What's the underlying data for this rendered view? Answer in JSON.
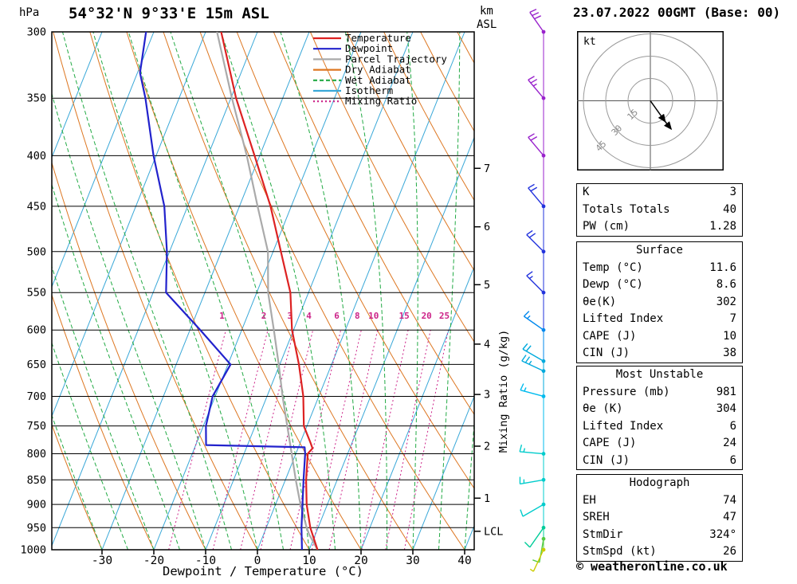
{
  "header": {
    "title": "54°32'N 9°33'E 15m ASL",
    "datetime": "23.07.2022 00GMT (Base: 00)"
  },
  "axes": {
    "pressure_label": "hPa",
    "km_label_line1": "km",
    "km_label_line2": "ASL",
    "mixing_ratio_label": "Mixing Ratio (g/kg)",
    "bottom_label": "Dewpoint / Temperature (°C)"
  },
  "footer": {
    "copyright": "© weatheronline.co.uk"
  },
  "hodograph_panel": {
    "unit": "kt",
    "rings": [
      15,
      30,
      45
    ],
    "trace_uv": [
      [
        0,
        0
      ],
      [
        5,
        -7
      ],
      [
        10,
        -14
      ],
      [
        14,
        -19
      ]
    ]
  },
  "tables": {
    "indices": {
      "rows": [
        {
          "label": "K",
          "value": "3"
        },
        {
          "label": "Totals Totals",
          "value": "40"
        },
        {
          "label": "PW (cm)",
          "value": "1.28"
        }
      ]
    },
    "surface": {
      "header": "Surface",
      "rows": [
        {
          "label": "Temp (°C)",
          "value": "11.6"
        },
        {
          "label": "Dewp (°C)",
          "value": "8.6"
        },
        {
          "label": "θe(K)",
          "value": "302"
        },
        {
          "label": "Lifted Index",
          "value": "7"
        },
        {
          "label": "CAPE (J)",
          "value": "10"
        },
        {
          "label": "CIN (J)",
          "value": "38"
        }
      ]
    },
    "most_unstable": {
      "header": "Most Unstable",
      "rows": [
        {
          "label": "Pressure (mb)",
          "value": "981"
        },
        {
          "label": "θe (K)",
          "value": "304"
        },
        {
          "label": "Lifted Index",
          "value": "6"
        },
        {
          "label": "CAPE (J)",
          "value": "24"
        },
        {
          "label": "CIN (J)",
          "value": "6"
        }
      ]
    },
    "hodograph": {
      "header": "Hodograph",
      "rows": [
        {
          "label": "EH",
          "value": "74"
        },
        {
          "label": "SREH",
          "value": "47"
        },
        {
          "label": "StmDir",
          "value": "324°"
        },
        {
          "label": "StmSpd (kt)",
          "value": "26"
        }
      ]
    }
  },
  "chart_data": {
    "type": "skew-t-log-p-sounding",
    "title": "54°32'N 9°33'E 15m ASL",
    "datetime": "23.07.2022 00GMT (Base: 00)",
    "pressure_range_hpa": [
      300,
      1000
    ],
    "pressure_ticks": [
      300,
      350,
      400,
      450,
      500,
      550,
      600,
      650,
      700,
      750,
      800,
      850,
      900,
      950,
      1000
    ],
    "temp_ticks": [
      -30,
      -20,
      -10,
      0,
      10,
      20,
      30,
      40
    ],
    "isotherm_step_c": 10,
    "km_ticks": [
      {
        "label": "7",
        "p": 412
      },
      {
        "label": "6",
        "p": 472
      },
      {
        "label": "5",
        "p": 540
      },
      {
        "label": "4",
        "p": 620
      },
      {
        "label": "3",
        "p": 697
      },
      {
        "label": "2",
        "p": 786
      },
      {
        "label": "1",
        "p": 887
      },
      {
        "label": "LCL",
        "p": 958
      }
    ],
    "mixing_ratio_values": [
      1,
      2,
      3,
      4,
      6,
      8,
      10,
      15,
      20,
      25
    ],
    "background": {
      "isotherm": "#3aa8d8",
      "dry_adiabat": "#dd7722",
      "wet_adiabat": "#22aa44",
      "mixing_ratio": "#cc2288"
    },
    "legend": [
      {
        "label": "Temperature",
        "color": "#dd2222",
        "dash": null
      },
      {
        "label": "Dewpoint",
        "color": "#2222cc",
        "dash": null
      },
      {
        "label": "Parcel Trajectory",
        "color": "#aaaaaa",
        "dash": null
      },
      {
        "label": "Dry Adiabat",
        "color": "#dd7722",
        "dash": null
      },
      {
        "label": "Wet Adiabat",
        "color": "#22aa44",
        "dash": "5,3"
      },
      {
        "label": "Isotherm",
        "color": "#3aa8d8",
        "dash": null
      },
      {
        "label": "Mixing Ratio",
        "color": "#cc2288",
        "dash": "2,3"
      }
    ],
    "series": [
      {
        "name": "Parcel Trajectory",
        "color": "#aaaaaa",
        "width": 2.2,
        "points": [
          [
            1000,
            11.6
          ],
          [
            965,
            8.8
          ],
          [
            950,
            7.8
          ],
          [
            900,
            4.8
          ],
          [
            850,
            2.0
          ],
          [
            800,
            -0.8
          ],
          [
            750,
            -3.8
          ],
          [
            700,
            -7.0
          ],
          [
            650,
            -10.2
          ],
          [
            600,
            -13.8
          ],
          [
            550,
            -17.8
          ],
          [
            500,
            -21.0
          ],
          [
            450,
            -26.5
          ],
          [
            400,
            -32.5
          ],
          [
            350,
            -39.8
          ],
          [
            300,
            -47.8
          ]
        ]
      },
      {
        "name": "Temperature",
        "color": "#dd2222",
        "width": 2.2,
        "points": [
          [
            1000,
            11.6
          ],
          [
            950,
            8.5
          ],
          [
            900,
            6.0
          ],
          [
            850,
            4.0
          ],
          [
            800,
            2.3
          ],
          [
            790,
            2.8
          ],
          [
            780,
            2.0
          ],
          [
            750,
            -0.6
          ],
          [
            700,
            -3.0
          ],
          [
            650,
            -6.3
          ],
          [
            600,
            -10.3
          ],
          [
            550,
            -13.5
          ],
          [
            500,
            -18.5
          ],
          [
            450,
            -24.0
          ],
          [
            400,
            -31.0
          ],
          [
            350,
            -39.0
          ],
          [
            300,
            -47.0
          ]
        ]
      },
      {
        "name": "Dewpoint",
        "color": "#2222cc",
        "width": 2.2,
        "points": [
          [
            1000,
            8.6
          ],
          [
            950,
            6.8
          ],
          [
            900,
            5.2
          ],
          [
            850,
            3.5
          ],
          [
            800,
            1.8
          ],
          [
            788,
            1.2
          ],
          [
            784,
            -18.0
          ],
          [
            750,
            -19.5
          ],
          [
            700,
            -20.5
          ],
          [
            650,
            -19.5
          ],
          [
            600,
            -28.0
          ],
          [
            550,
            -37.5
          ],
          [
            500,
            -40.5
          ],
          [
            450,
            -44.5
          ],
          [
            400,
            -50.5
          ],
          [
            350,
            -56.5
          ],
          [
            330,
            -59.5
          ],
          [
            300,
            -61.5
          ]
        ]
      }
    ],
    "winds": [
      {
        "p": 300,
        "dir": 325,
        "spd": 30,
        "color": "#9922cc"
      },
      {
        "p": 350,
        "dir": 320,
        "spd": 25,
        "color": "#9922cc"
      },
      {
        "p": 400,
        "dir": 320,
        "spd": 20,
        "color": "#9922cc"
      },
      {
        "p": 450,
        "dir": 320,
        "spd": 20,
        "color": "#2233dd"
      },
      {
        "p": 500,
        "dir": 315,
        "spd": 20,
        "color": "#2233dd"
      },
      {
        "p": 550,
        "dir": 315,
        "spd": 15,
        "color": "#2233dd"
      },
      {
        "p": 600,
        "dir": 305,
        "spd": 15,
        "color": "#0088ee"
      },
      {
        "p": 645,
        "dir": 300,
        "spd": 20,
        "color": "#00aadd"
      },
      {
        "p": 660,
        "dir": 295,
        "spd": 25,
        "color": "#00aadd"
      },
      {
        "p": 700,
        "dir": 285,
        "spd": 15,
        "color": "#00bbee"
      },
      {
        "p": 800,
        "dir": 275,
        "spd": 15,
        "color": "#00cccc"
      },
      {
        "p": 850,
        "dir": 260,
        "spd": 15,
        "color": "#00cccc"
      },
      {
        "p": 900,
        "dir": 240,
        "spd": 10,
        "color": "#00cccc"
      },
      {
        "p": 950,
        "dir": 215,
        "spd": 10,
        "color": "#00cc99"
      },
      {
        "p": 975,
        "dir": 190,
        "spd": 10,
        "color": "#55cc44"
      },
      {
        "p": 1000,
        "dir": 205,
        "spd": 5,
        "color": "#cccc00"
      }
    ]
  }
}
